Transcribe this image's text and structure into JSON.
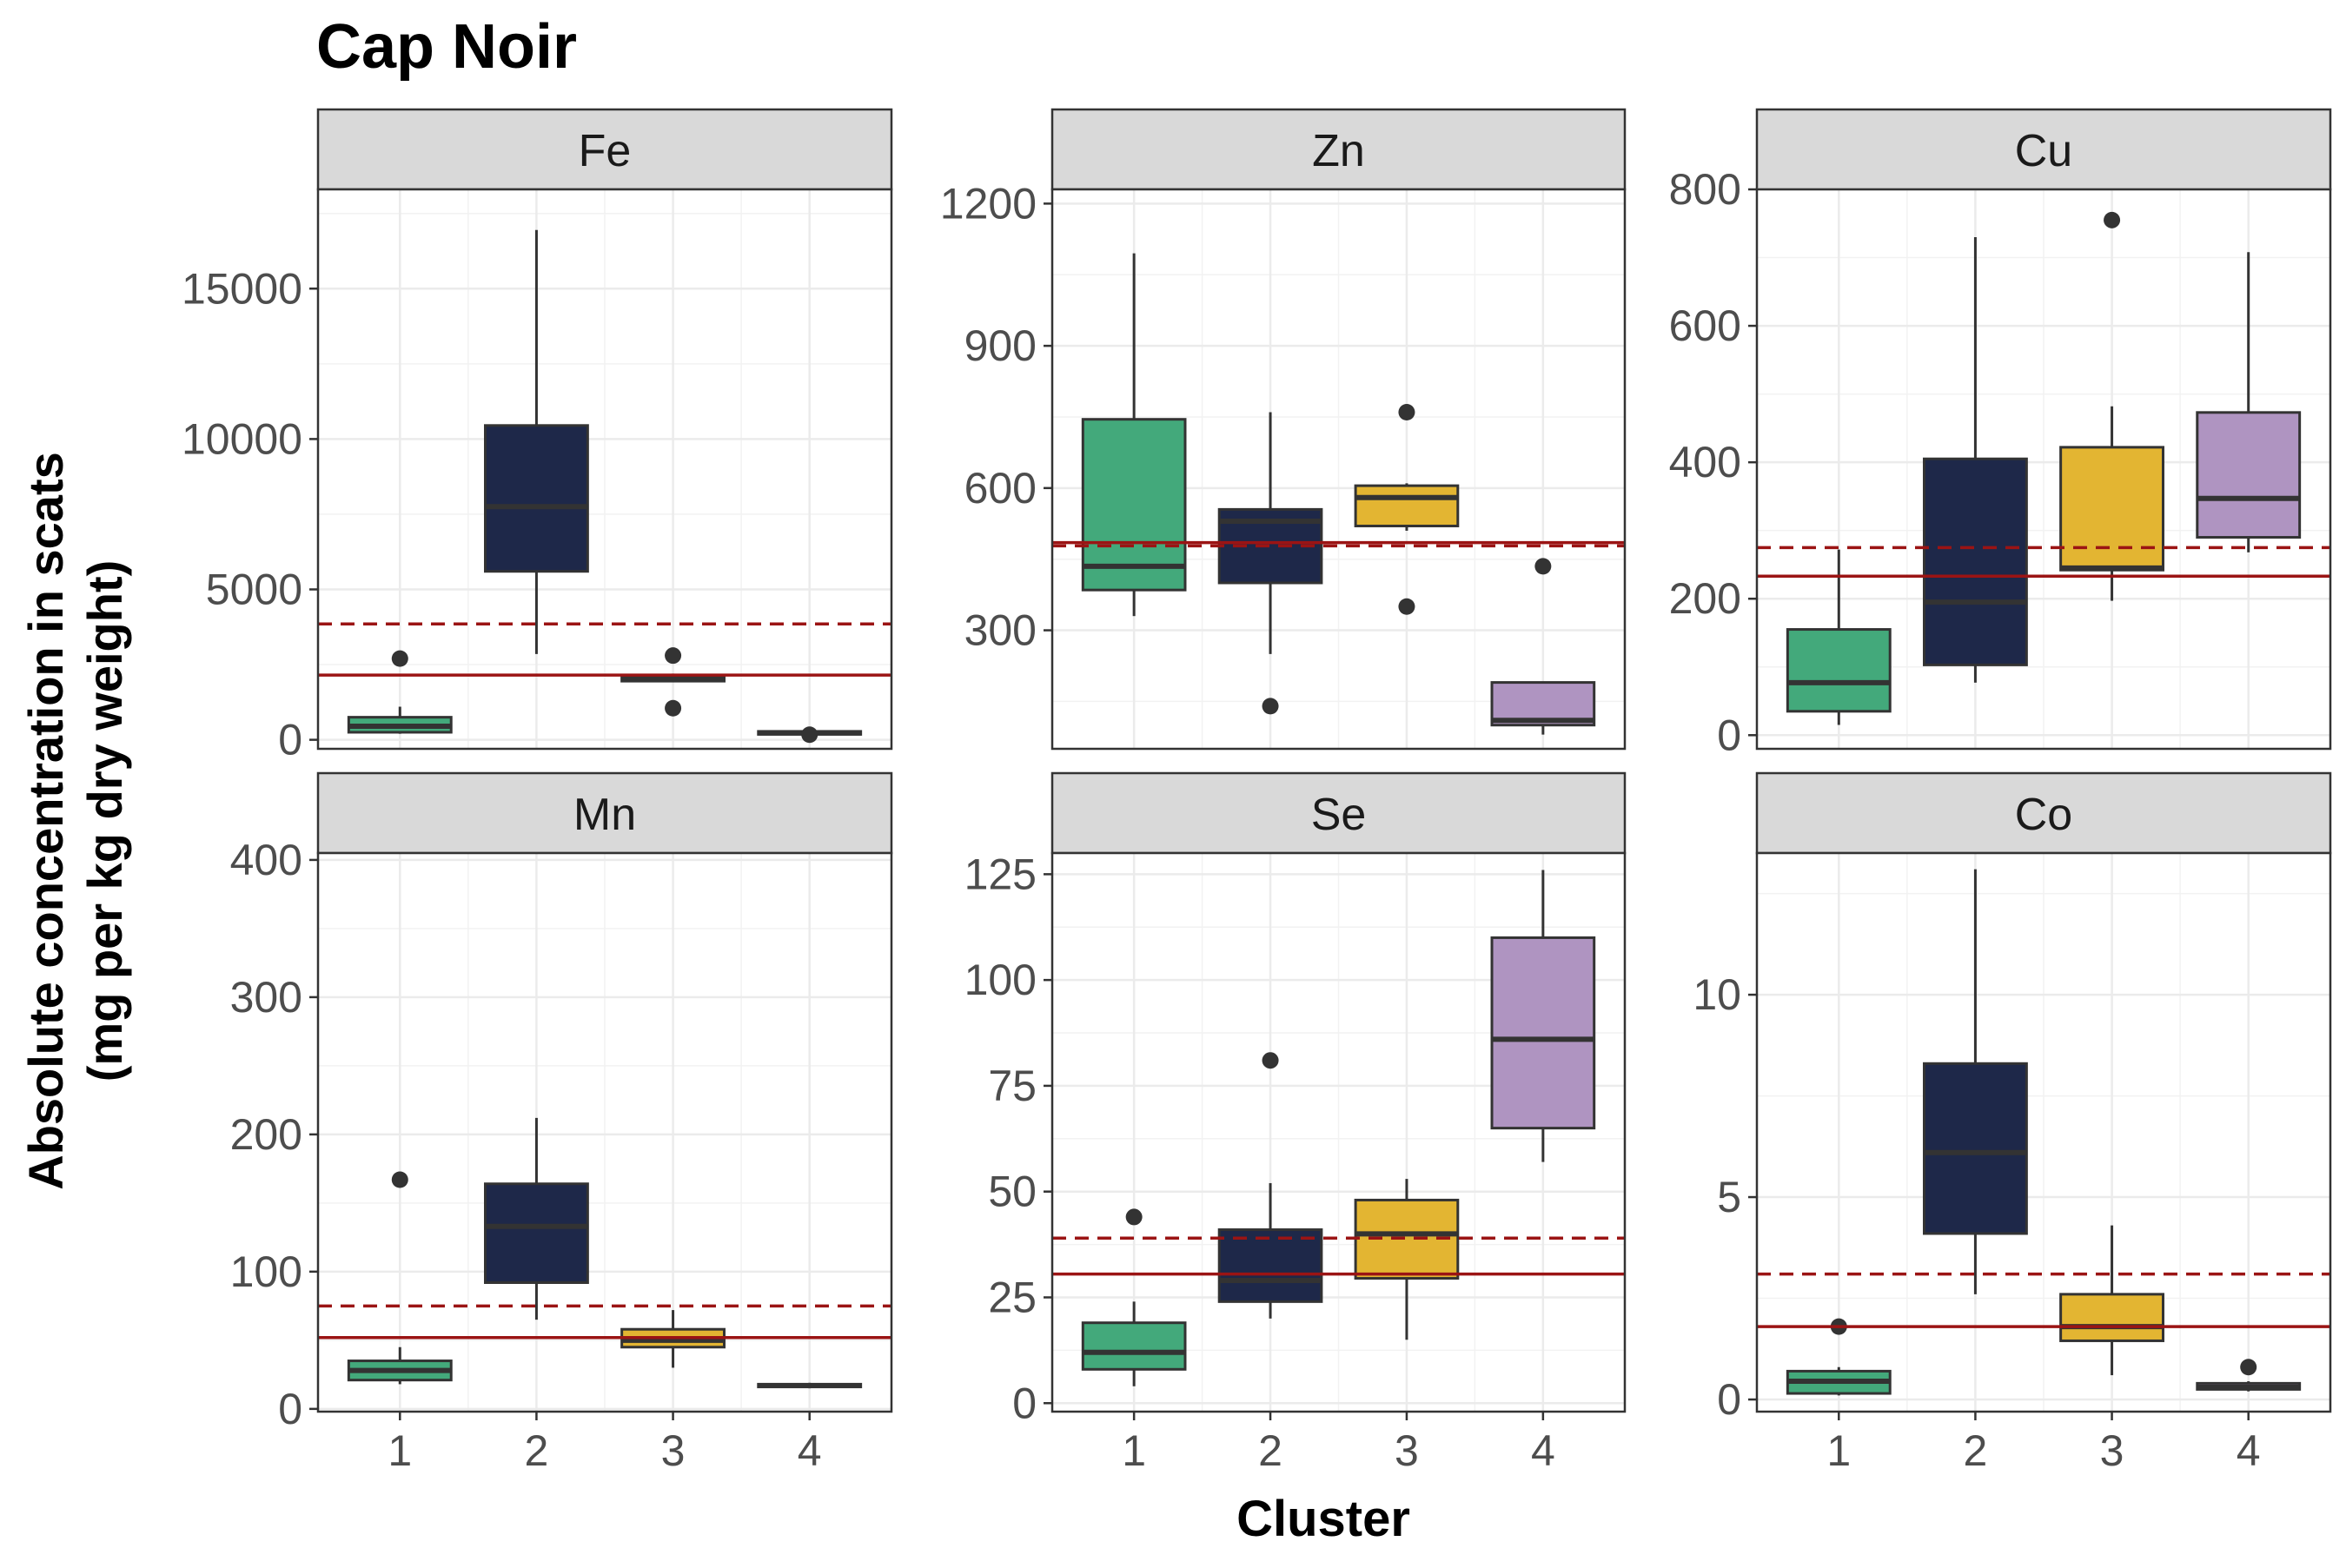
{
  "chart_data": {
    "type": "boxplot",
    "title": "Cap Noir",
    "xlabel": "Cluster",
    "ylabel_line1": "Absolute concentration in scats",
    "ylabel_line2": "(mg per kg dry weight)",
    "categories": [
      "1",
      "2",
      "3",
      "4"
    ],
    "colors": [
      "#43A97B",
      "#1E2849",
      "#E3B532",
      "#AF94C1"
    ],
    "reference_line_color": "#9B1414",
    "grid": true,
    "panels": [
      {
        "name": "Fe",
        "ylim": [
          -300,
          18300
        ],
        "yticks": [
          0,
          5000,
          10000,
          15000
        ],
        "ytick_labels": [
          "0",
          "5000",
          "10000",
          "15000"
        ],
        "solid_line": 2150,
        "dashed_line": 3850,
        "boxes": [
          {
            "category": "1",
            "min": 200,
            "q1": 250,
            "median": 450,
            "q3": 750,
            "max": 1100,
            "outliers": [
              2700
            ]
          },
          {
            "category": "2",
            "min": 2850,
            "q1": 5600,
            "median": 7750,
            "q3": 10450,
            "max": 16950,
            "outliers": []
          },
          {
            "category": "3",
            "min": 1950,
            "q1": 1950,
            "median": 2050,
            "q3": 2150,
            "max": 2200,
            "outliers": [
              2800,
              1050
            ]
          },
          {
            "category": "4",
            "min": 150,
            "q1": 180,
            "median": 230,
            "q3": 280,
            "max": 300,
            "outliers": [
              170
            ]
          }
        ]
      },
      {
        "name": "Zn",
        "ylim": [
          50,
          1230
        ],
        "yticks": [
          300,
          600,
          900,
          1200
        ],
        "ytick_labels": [
          "300",
          "600",
          "900",
          "1200"
        ],
        "solid_line": 485,
        "dashed_line": 478,
        "boxes": [
          {
            "category": "1",
            "min": 330,
            "q1": 385,
            "median": 435,
            "q3": 745,
            "max": 1095,
            "outliers": []
          },
          {
            "category": "2",
            "min": 250,
            "q1": 400,
            "median": 530,
            "q3": 555,
            "max": 760,
            "outliers": [
              140
            ]
          },
          {
            "category": "3",
            "min": 510,
            "q1": 520,
            "median": 580,
            "q3": 605,
            "max": 610,
            "outliers": [
              760,
              350
            ]
          },
          {
            "category": "4",
            "min": 80,
            "q1": 100,
            "median": 110,
            "q3": 190,
            "max": 190,
            "outliers": [
              435
            ]
          }
        ]
      },
      {
        "name": "Cu",
        "ylim": [
          -20,
          800
        ],
        "yticks": [
          0,
          200,
          400,
          600,
          800
        ],
        "ytick_labels": [
          "0",
          "200",
          "400",
          "600",
          "800"
        ],
        "solid_line": 233,
        "dashed_line": 275,
        "boxes": [
          {
            "category": "1",
            "min": 15,
            "q1": 35,
            "median": 77,
            "q3": 155,
            "max": 272,
            "outliers": []
          },
          {
            "category": "2",
            "min": 77,
            "q1": 103,
            "median": 195,
            "q3": 405,
            "max": 730,
            "outliers": []
          },
          {
            "category": "3",
            "min": 197,
            "q1": 242,
            "median": 245,
            "q3": 422,
            "max": 482,
            "outliers": [
              755
            ]
          },
          {
            "category": "4",
            "min": 268,
            "q1": 290,
            "median": 347,
            "q3": 473,
            "max": 708,
            "outliers": []
          }
        ]
      },
      {
        "name": "Mn",
        "ylim": [
          -2,
          405
        ],
        "yticks": [
          0,
          100,
          200,
          300,
          400
        ],
        "ytick_labels": [
          "0",
          "100",
          "200",
          "300",
          "400"
        ],
        "solid_line": 52,
        "dashed_line": 75,
        "boxes": [
          {
            "category": "1",
            "min": 18,
            "q1": 21,
            "median": 28,
            "q3": 35,
            "max": 45,
            "outliers": [
              167
            ]
          },
          {
            "category": "2",
            "min": 65,
            "q1": 92,
            "median": 133,
            "q3": 164,
            "max": 212,
            "outliers": []
          },
          {
            "category": "3",
            "min": 30,
            "q1": 45,
            "median": 50,
            "q3": 58,
            "max": 72,
            "outliers": []
          },
          {
            "category": "4",
            "min": 15,
            "q1": 16,
            "median": 17,
            "q3": 18,
            "max": 19,
            "outliers": []
          }
        ]
      },
      {
        "name": "Se",
        "ylim": [
          -2,
          130
        ],
        "yticks": [
          0,
          25,
          50,
          75,
          100,
          125
        ],
        "ytick_labels": [
          "0",
          "25",
          "50",
          "75",
          "100",
          "125"
        ],
        "solid_line": 30.5,
        "dashed_line": 39,
        "boxes": [
          {
            "category": "1",
            "min": 4,
            "q1": 8,
            "median": 12,
            "q3": 19,
            "max": 24,
            "outliers": [
              44
            ]
          },
          {
            "category": "2",
            "min": 20,
            "q1": 24,
            "median": 29,
            "q3": 41,
            "max": 52,
            "outliers": [
              81
            ]
          },
          {
            "category": "3",
            "min": 15,
            "q1": 29.5,
            "median": 40,
            "q3": 48,
            "max": 53,
            "outliers": []
          },
          {
            "category": "4",
            "min": 57,
            "q1": 65,
            "median": 86,
            "q3": 110,
            "max": 126,
            "outliers": []
          }
        ]
      },
      {
        "name": "Co",
        "ylim": [
          -0.3,
          13.5
        ],
        "yticks": [
          0,
          5,
          10
        ],
        "ytick_labels": [
          "0",
          "5",
          "10"
        ],
        "solid_line": 1.8,
        "dashed_line": 3.1,
        "boxes": [
          {
            "category": "1",
            "min": 0.1,
            "q1": 0.15,
            "median": 0.45,
            "q3": 0.7,
            "max": 0.8,
            "outliers": [
              1.8
            ]
          },
          {
            "category": "2",
            "min": 2.6,
            "q1": 4.1,
            "median": 6.1,
            "q3": 8.3,
            "max": 13.1,
            "outliers": []
          },
          {
            "category": "3",
            "min": 0.6,
            "q1": 1.45,
            "median": 1.8,
            "q3": 2.6,
            "max": 4.3,
            "outliers": []
          },
          {
            "category": "4",
            "min": 0.2,
            "q1": 0.25,
            "median": 0.3,
            "q3": 0.4,
            "max": 0.45,
            "outliers": [
              0.8
            ]
          }
        ]
      }
    ]
  }
}
